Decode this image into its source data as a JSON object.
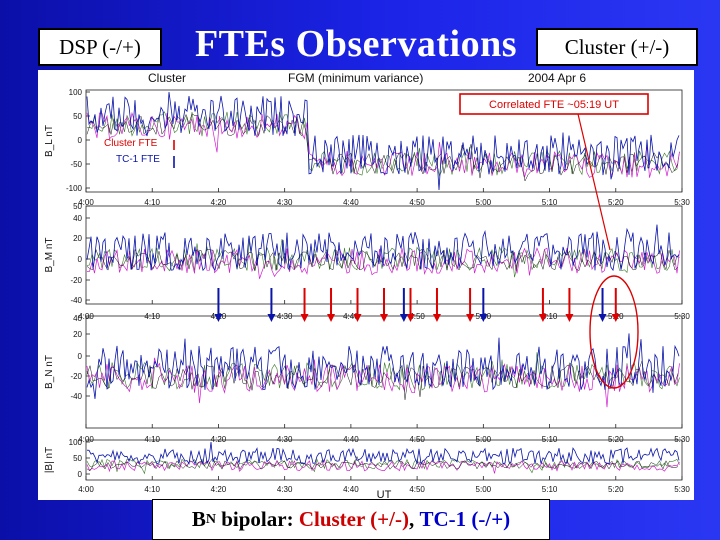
{
  "slide": {
    "tag_left": "DSP (-/+)",
    "title": "FTEs Observations",
    "tag_right": "Cluster (+/-)"
  },
  "figure": {
    "header_left": "Cluster",
    "header_center": "FGM (minimum variance)",
    "header_right": "2004 Apr 6",
    "annotation": "Correlated FTE ~05:19 UT",
    "legend_cluster": "Cluster FTE",
    "legend_tc1": "TC-1 FTE",
    "xlabel": "UT",
    "xticks": [
      "4:00",
      "4:10",
      "4:20",
      "4:30",
      "4:40",
      "4:50",
      "5:00",
      "5:10",
      "5:20",
      "5:30"
    ],
    "panels": [
      {
        "ylabel": "B_L nT",
        "yticks": [
          "100",
          "50",
          "0",
          "-50",
          "-100"
        ]
      },
      {
        "ylabel": "B_M nT",
        "yticks": [
          "50",
          "40",
          "20",
          "0",
          "-20",
          "-40"
        ]
      },
      {
        "ylabel": "B_N nT",
        "yticks": [
          "40",
          "20",
          "0",
          "-20",
          "-40"
        ]
      },
      {
        "ylabel": "|B| nT",
        "yticks": [
          "100",
          "50",
          "0"
        ]
      }
    ],
    "colors": {
      "cluster": "#dd0000",
      "tc1": "#0a14a8",
      "annotation": "#dd0000"
    },
    "cluster_fte_times": [
      "4:33",
      "4:37",
      "4:41",
      "4:45",
      "4:49",
      "4:53",
      "4:58",
      "5:09",
      "5:13",
      "5:20"
    ],
    "tc1_fte_times": [
      "4:20",
      "4:28",
      "4:48",
      "5:00",
      "5:18"
    ]
  },
  "caption": {
    "b": "B",
    "n": "N",
    "bipolar": " bipolar: ",
    "cluster": "Cluster (+/-)",
    "sep": ", ",
    "tc1": "TC-1 (-/+)"
  }
}
